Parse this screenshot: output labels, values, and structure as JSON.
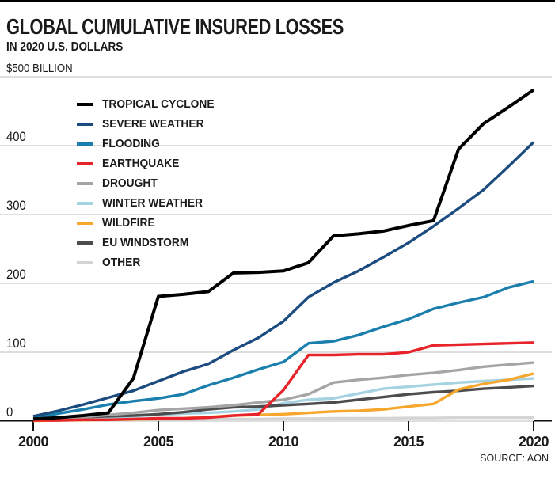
{
  "chart_data": {
    "type": "line",
    "title": "GLOBAL CUMULATIVE INSURED LOSSES",
    "subtitle": "IN 2020 U.S. DOLLARS",
    "unit_label": "$500 BILLION",
    "source": "SOURCE: AON",
    "x": [
      2000,
      2001,
      2002,
      2003,
      2004,
      2005,
      2006,
      2007,
      2008,
      2009,
      2010,
      2011,
      2012,
      2013,
      2014,
      2015,
      2016,
      2017,
      2018,
      2019,
      2020
    ],
    "x_ticks": [
      2000,
      2005,
      2010,
      2015,
      2020
    ],
    "y_ticks": [
      0,
      100,
      200,
      300,
      400,
      500
    ],
    "ylim": [
      0,
      500
    ],
    "xlim": [
      2000,
      2020
    ],
    "grid": "horizontal",
    "grid_color": "#cccccc",
    "axis_color": "#111111",
    "legend_position": "upper-left",
    "series": [
      {
        "name": "TROPICAL CYCLONE",
        "slug": "tropical-cyclone",
        "color": "#000000",
        "values": [
          3,
          5,
          8,
          12,
          62,
          181,
          184,
          188,
          215,
          216,
          218,
          230,
          269,
          272,
          276,
          284,
          291,
          395,
          432,
          456,
          481
        ]
      },
      {
        "name": "SEVERE WEATHER",
        "slug": "severe-weather",
        "color": "#1c4c7f",
        "values": [
          7,
          15,
          24,
          34,
          44,
          58,
          72,
          83,
          103,
          121,
          145,
          180,
          201,
          218,
          238,
          259,
          283,
          309,
          336,
          370,
          405
        ]
      },
      {
        "name": "FLOODING",
        "slug": "flooding",
        "color": "#1a7fad",
        "values": [
          4,
          11,
          17,
          24,
          29,
          33,
          39,
          52,
          63,
          75,
          86,
          113,
          116,
          125,
          137,
          148,
          163,
          172,
          180,
          194,
          203
        ]
      },
      {
        "name": "EARTHQUAKE",
        "slug": "earthquake",
        "color": "#e8232a",
        "values": [
          1,
          1,
          2,
          2,
          3,
          4,
          4,
          5,
          8,
          10,
          45,
          96,
          96,
          97,
          97,
          100,
          110,
          111,
          112,
          113,
          114
        ]
      },
      {
        "name": "DROUGHT",
        "slug": "drought",
        "color": "#a5a5a5",
        "values": [
          1,
          3,
          6,
          9,
          12,
          16,
          18,
          20,
          23,
          27,
          31,
          39,
          56,
          60,
          63,
          67,
          70,
          74,
          79,
          82,
          85
        ]
      },
      {
        "name": "WINTER WEATHER",
        "slug": "winter-weather",
        "color": "#a6d3e1",
        "values": [
          1,
          2,
          4,
          5,
          7,
          9,
          11,
          12,
          14,
          17,
          26,
          31,
          33,
          40,
          47,
          50,
          53,
          56,
          58,
          60,
          62
        ]
      },
      {
        "name": "WILDFIRE",
        "slug": "wildfire",
        "color": "#f5a72e",
        "values": [
          0.5,
          1,
          1.5,
          2,
          2.5,
          3,
          4,
          6,
          8,
          9,
          10,
          12,
          14,
          15,
          17,
          21,
          25,
          46,
          54,
          60,
          69
        ]
      },
      {
        "name": "EU WINDSTORM",
        "slug": "eu-windstorm",
        "color": "#4d4d4f",
        "values": [
          2,
          4,
          6,
          7,
          8,
          10,
          13,
          17,
          20,
          21,
          23,
          25,
          27,
          31,
          35,
          39,
          42,
          44,
          47,
          49,
          51
        ]
      },
      {
        "name": "OTHER",
        "slug": "other",
        "color": "#d4d4d4",
        "values": [
          0.5,
          1,
          1.5,
          2,
          2,
          2.5,
          2.5,
          3,
          3,
          3,
          3.5,
          3.5,
          4,
          4,
          4,
          4.5,
          4.5,
          5,
          5,
          5,
          5
        ]
      }
    ],
    "draw_order": [
      "other",
      "winter-weather",
      "eu-windstorm",
      "drought",
      "wildfire",
      "earthquake",
      "flooding",
      "severe-weather",
      "tropical-cyclone"
    ]
  }
}
